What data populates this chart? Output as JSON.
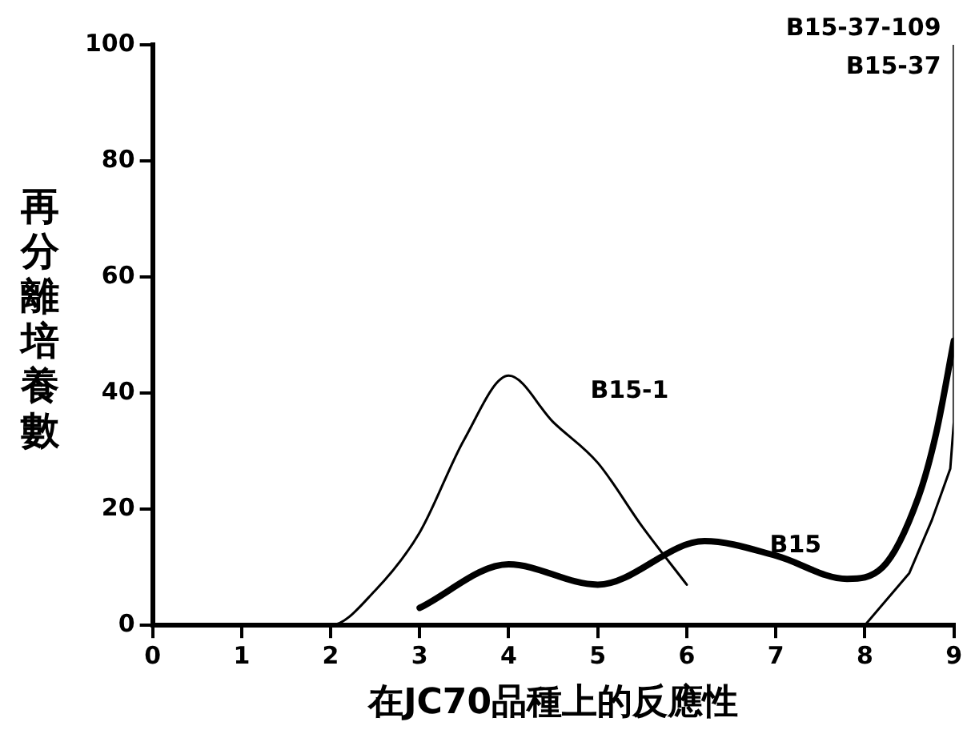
{
  "chart_data": {
    "type": "line",
    "xlabel": "在JC70品種上的反應性",
    "ylabel": "再分離培養數",
    "xlim": [
      0,
      9
    ],
    "xticks": [
      0,
      1,
      2,
      3,
      4,
      5,
      6,
      7,
      8,
      9
    ],
    "ylim": [
      0,
      100
    ],
    "yticks": [
      0,
      20,
      40,
      60,
      80,
      100
    ],
    "grid": false,
    "legend": false,
    "marker": "none",
    "series": [
      {
        "name": "B15-1",
        "color": "#000000",
        "x": [
          0,
          1,
          2,
          2.5,
          3,
          3.5,
          4,
          4.5,
          5,
          5.5,
          6
        ],
        "values": [
          0,
          0,
          0,
          6,
          16,
          32,
          43,
          35,
          28,
          17,
          7
        ]
      },
      {
        "name": "B15",
        "color": "#000000",
        "x": [
          3,
          4,
          5,
          6.2,
          7,
          7.8,
          8.2,
          8.6,
          8.8,
          9
        ],
        "values": [
          3,
          10.5,
          7,
          14.5,
          12,
          8,
          10,
          22,
          33,
          49
        ]
      },
      {
        "name": "B15-37",
        "color": "#000000",
        "x": [
          8,
          8.5,
          8.75,
          8.96,
          9,
          9
        ],
        "values": [
          0,
          9,
          18,
          27,
          35,
          100
        ]
      }
    ],
    "annotations": [
      {
        "text": "B15-37-109",
        "x": 9,
        "y": 100
      }
    ]
  }
}
